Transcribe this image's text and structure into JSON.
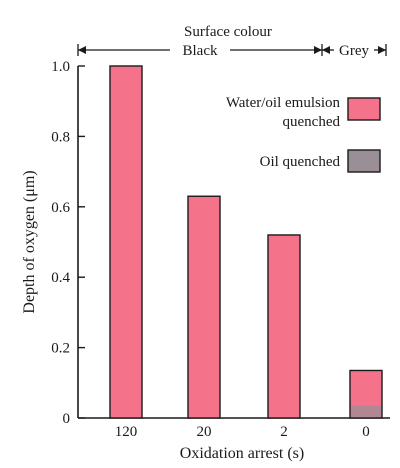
{
  "chart_data": {
    "type": "bar",
    "categories": [
      "120",
      "20",
      "2",
      "0"
    ],
    "series": [
      {
        "name": "Water/oil emulsion quenched",
        "values": [
          1.0,
          0.63,
          0.52,
          0.135
        ],
        "color": "#f4728a"
      },
      {
        "name": "Oil quenched",
        "values": [
          null,
          null,
          null,
          0.035
        ],
        "color": "#9a8f96"
      }
    ],
    "ylabel": "Depth of oxygen (μm)",
    "xlabel": "Oxidation arrest (s)",
    "ylim": [
      0,
      1.0
    ],
    "yticks": [
      "0",
      "0.2",
      "0.4",
      "0.6",
      "0.8",
      "1.0"
    ],
    "grid": false,
    "legend_position": "top-right",
    "surface_colour": {
      "title": "Surface colour",
      "bands": [
        {
          "label": "Black",
          "from": "120",
          "to": "2"
        },
        {
          "label": "Grey",
          "from": "0",
          "to": "0"
        }
      ]
    },
    "colors": {
      "bar_stroke": "#1a1a1a",
      "axis": "#1a1a1a"
    }
  }
}
